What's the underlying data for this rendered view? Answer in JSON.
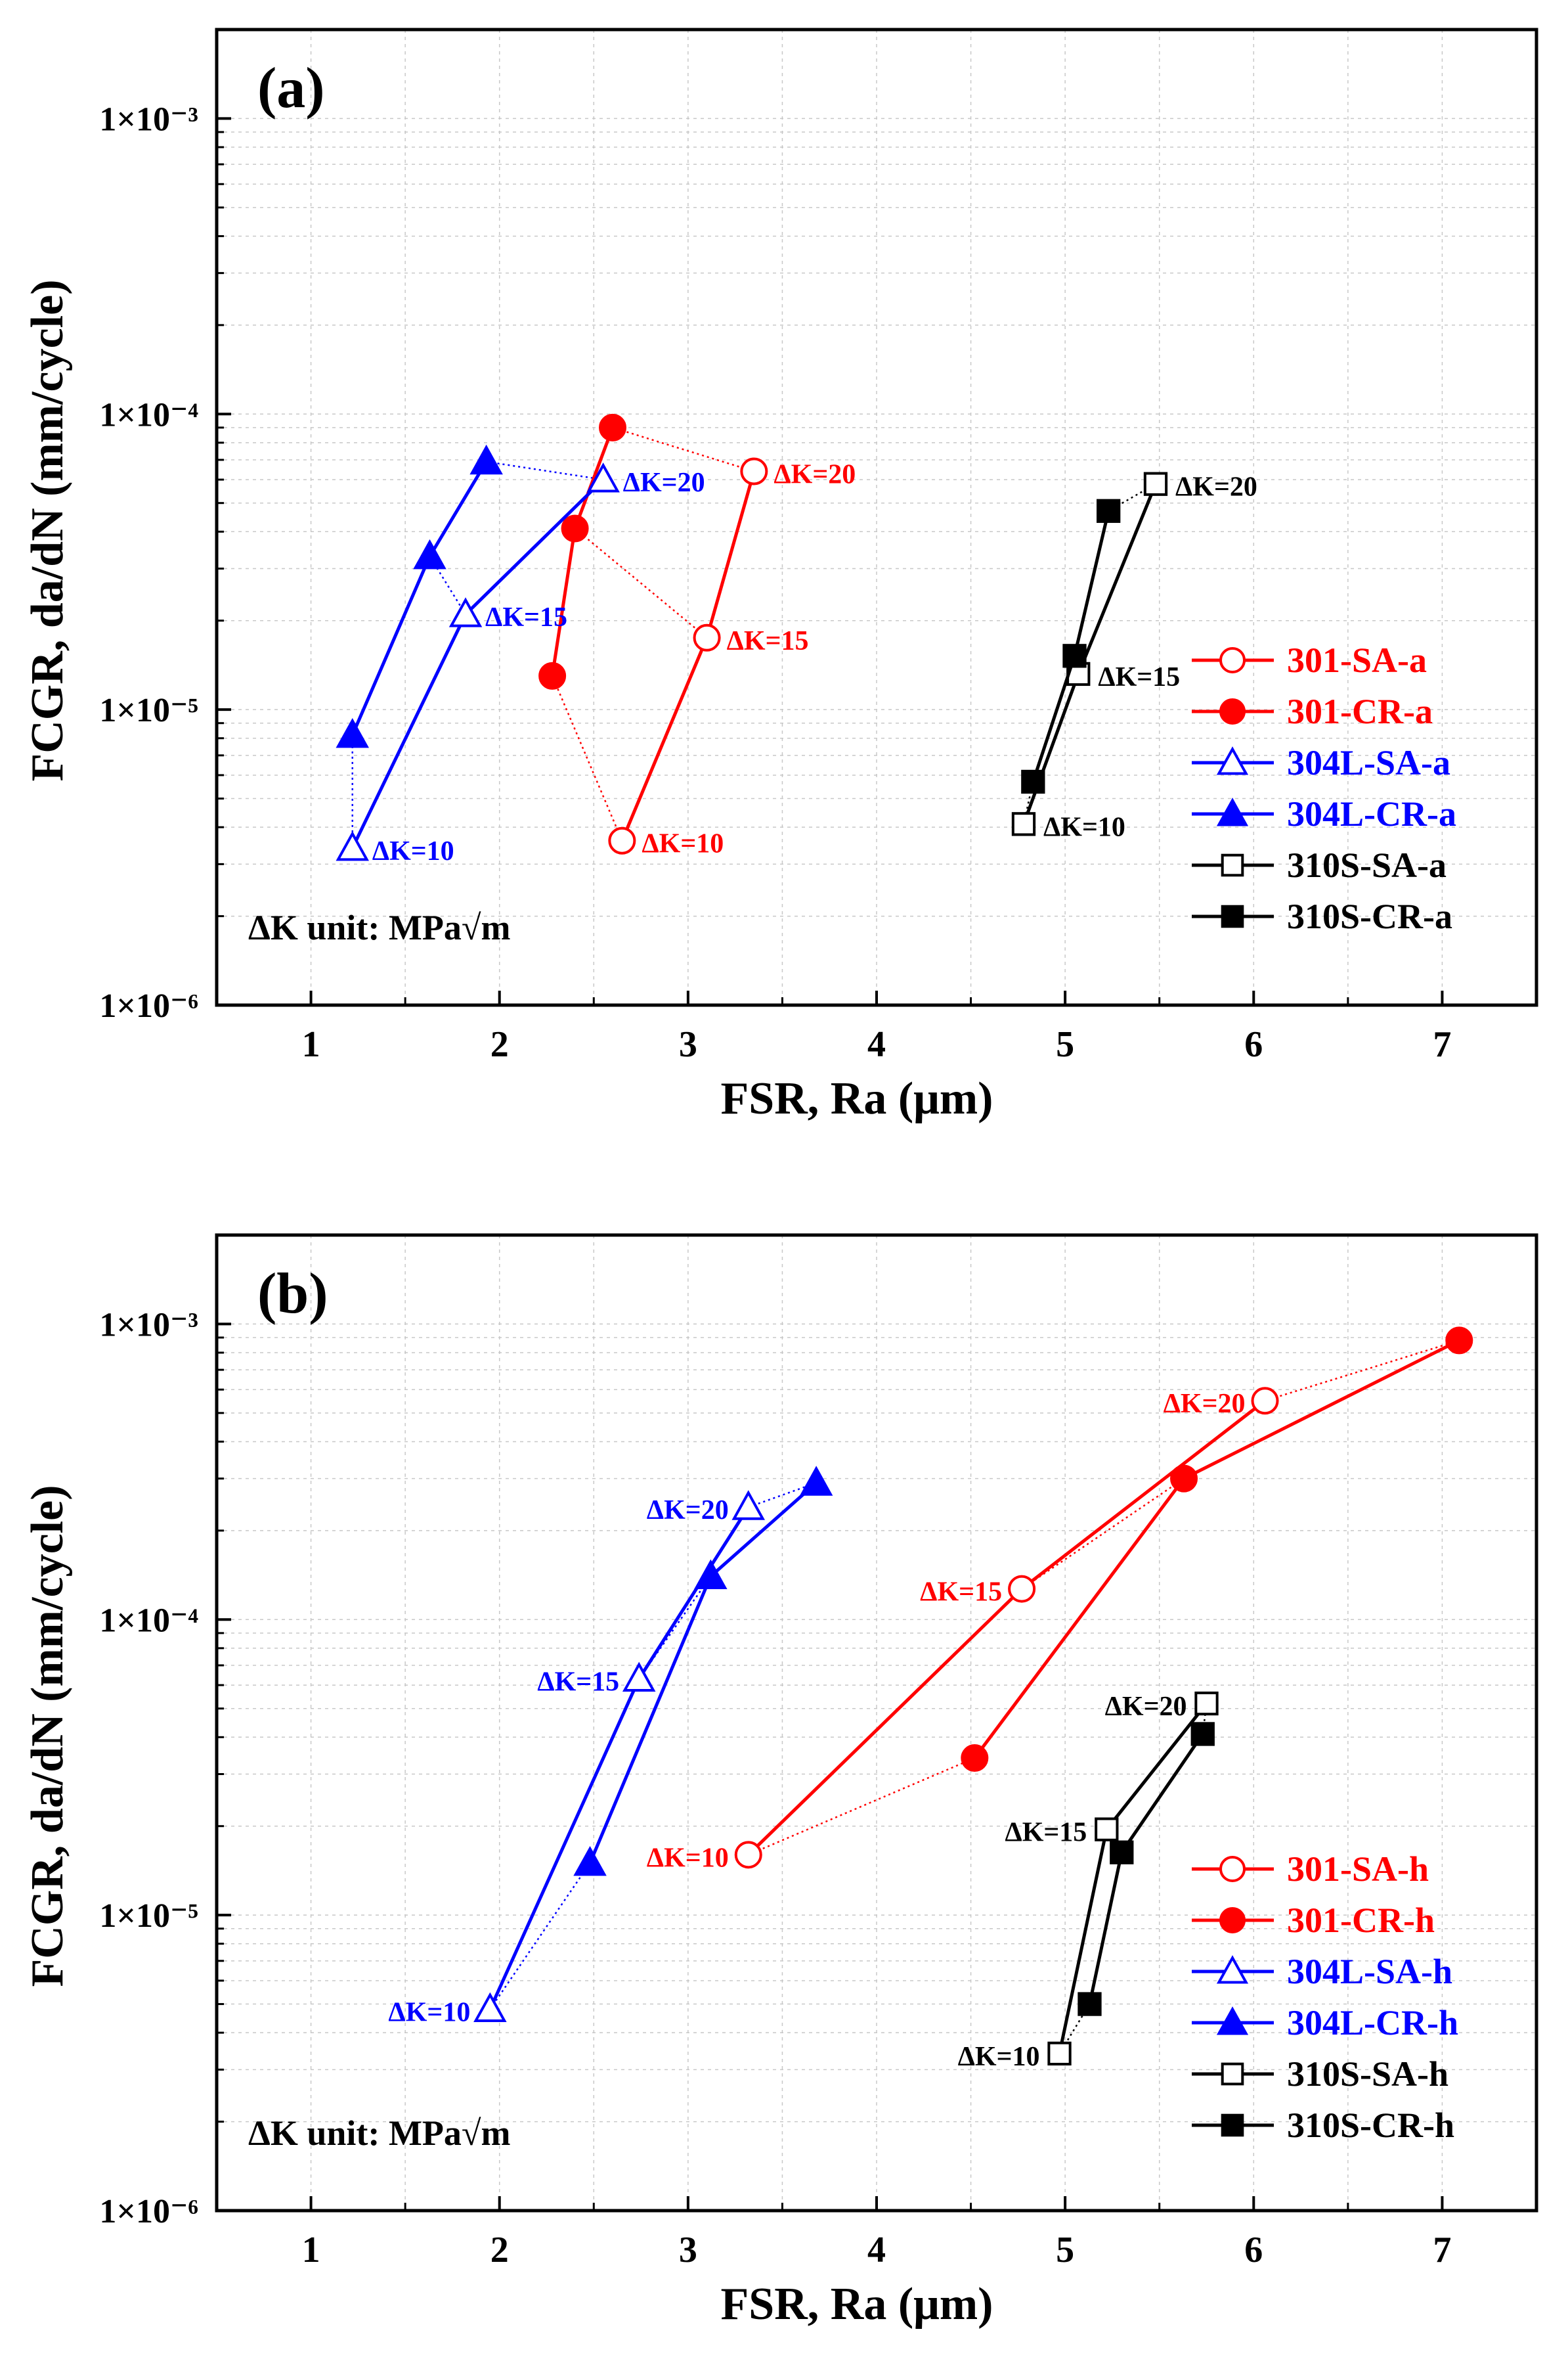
{
  "chart_data": [
    {
      "type": "line",
      "panel_label": "(a)",
      "xlabel": "FSR, Ra (μm)",
      "ylabel": "FCGR, da/dN (mm/cycle)",
      "xlim": [
        0.5,
        7.5
      ],
      "ylim": [
        1e-06,
        0.002
      ],
      "yscale": "log",
      "x_ticks": [
        "1",
        "2",
        "3",
        "4",
        "5",
        "6",
        "7"
      ],
      "y_ticks": [
        "1×10⁻⁶",
        "1×10⁻⁵",
        "1×10⁻⁴",
        "1×10⁻³"
      ],
      "grid": true,
      "legend_position": "right",
      "unit_note": "ΔK unit: MPa√m",
      "series": [
        {
          "name": "301-SA-a",
          "color": "#ff0000",
          "marker": "circle-open",
          "x": [
            2.65,
            3.1,
            3.35
          ],
          "y": [
            3.6e-06,
            1.75e-05,
            6.4e-05
          ]
        },
        {
          "name": "301-CR-a",
          "color": "#ff0000",
          "marker": "circle-filled",
          "x": [
            2.28,
            2.4,
            2.6
          ],
          "y": [
            1.3e-05,
            4.1e-05,
            9e-05
          ]
        },
        {
          "name": "304L-SA-a",
          "color": "#0000ff",
          "marker": "triangle-open",
          "x": [
            1.22,
            1.82,
            2.55
          ],
          "y": [
            3.4e-06,
            2.1e-05,
            6e-05
          ]
        },
        {
          "name": "304L-CR-a",
          "color": "#0000ff",
          "marker": "triangle-filled",
          "x": [
            1.22,
            1.63,
            1.93
          ],
          "y": [
            8.2e-06,
            3.3e-05,
            6.9e-05
          ]
        },
        {
          "name": "310S-SA-a",
          "color": "#000000",
          "marker": "square-open",
          "x": [
            4.78,
            5.07,
            5.48
          ],
          "y": [
            4.1e-06,
            1.32e-05,
            5.8e-05
          ]
        },
        {
          "name": "310S-CR-a",
          "color": "#000000",
          "marker": "square-filled",
          "x": [
            4.83,
            5.05,
            5.23
          ],
          "y": [
            5.7e-06,
            1.52e-05,
            4.7e-05
          ]
        }
      ],
      "annotations": [
        {
          "text": "ΔK=20",
          "x": 3.35,
          "y": 6.4e-05,
          "color": "#ff0000",
          "side": "right"
        },
        {
          "text": "ΔK=15",
          "x": 3.1,
          "y": 1.75e-05,
          "color": "#ff0000",
          "side": "right"
        },
        {
          "text": "ΔK=10",
          "x": 2.65,
          "y": 3.6e-06,
          "color": "#ff0000",
          "side": "right"
        },
        {
          "text": "ΔK=20",
          "x": 2.55,
          "y": 6e-05,
          "color": "#0000ff",
          "side": "right"
        },
        {
          "text": "ΔK=15",
          "x": 1.82,
          "y": 2.1e-05,
          "color": "#0000ff",
          "side": "right"
        },
        {
          "text": "ΔK=10",
          "x": 1.22,
          "y": 3.4e-06,
          "color": "#0000ff",
          "side": "right"
        },
        {
          "text": "ΔK=20",
          "x": 5.48,
          "y": 5.8e-05,
          "color": "#000000",
          "side": "right"
        },
        {
          "text": "ΔK=15",
          "x": 5.07,
          "y": 1.32e-05,
          "color": "#000000",
          "side": "right"
        },
        {
          "text": "ΔK=10",
          "x": 4.78,
          "y": 4.1e-06,
          "color": "#000000",
          "side": "right"
        }
      ]
    },
    {
      "type": "line",
      "panel_label": "(b)",
      "xlabel": "FSR, Ra (μm)",
      "ylabel": "FCGR, da/dN (mm/cycle)",
      "xlim": [
        0.5,
        7.5
      ],
      "ylim": [
        1e-06,
        0.002
      ],
      "yscale": "log",
      "x_ticks": [
        "1",
        "2",
        "3",
        "4",
        "5",
        "6",
        "7"
      ],
      "y_ticks": [
        "1×10⁻⁶",
        "1×10⁻⁵",
        "1×10⁻⁴",
        "1×10⁻³"
      ],
      "grid": true,
      "legend_position": "bottom-right",
      "unit_note": "ΔK unit: MPa√m",
      "series": [
        {
          "name": "301-SA-h",
          "color": "#ff0000",
          "marker": "circle-open",
          "x": [
            3.32,
            4.77,
            6.06
          ],
          "y": [
            1.6e-05,
            0.000127,
            0.00055
          ]
        },
        {
          "name": "301-CR-h",
          "color": "#ff0000",
          "marker": "circle-filled",
          "x": [
            4.52,
            5.63,
            7.09
          ],
          "y": [
            3.4e-05,
            0.0003,
            0.00088
          ]
        },
        {
          "name": "304L-SA-h",
          "color": "#0000ff",
          "marker": "triangle-open",
          "x": [
            1.95,
            2.74,
            3.32
          ],
          "y": [
            4.8e-06,
            6.3e-05,
            0.00024
          ]
        },
        {
          "name": "304L-CR-h",
          "color": "#0000ff",
          "marker": "triangle-filled",
          "x": [
            2.48,
            3.12,
            3.68
          ],
          "y": [
            1.5e-05,
            0.00014,
            0.00029
          ]
        },
        {
          "name": "310S-SA-h",
          "color": "#000000",
          "marker": "square-open",
          "x": [
            4.97,
            5.22,
            5.75
          ],
          "y": [
            3.4e-06,
            1.95e-05,
            5.2e-05
          ]
        },
        {
          "name": "310S-CR-h",
          "color": "#000000",
          "marker": "square-filled",
          "x": [
            5.13,
            5.3,
            5.73
          ],
          "y": [
            5e-06,
            1.63e-05,
            4.1e-05
          ]
        }
      ],
      "annotations": [
        {
          "text": "ΔK=20",
          "x": 6.06,
          "y": 0.00055,
          "color": "#ff0000",
          "side": "left"
        },
        {
          "text": "ΔK=15",
          "x": 4.77,
          "y": 0.000127,
          "color": "#ff0000",
          "side": "left"
        },
        {
          "text": "ΔK=10",
          "x": 3.32,
          "y": 1.6e-05,
          "color": "#ff0000",
          "side": "left"
        },
        {
          "text": "ΔK=20",
          "x": 3.32,
          "y": 0.00024,
          "color": "#0000ff",
          "side": "left"
        },
        {
          "text": "ΔK=15",
          "x": 2.74,
          "y": 6.3e-05,
          "color": "#0000ff",
          "side": "left"
        },
        {
          "text": "ΔK=10",
          "x": 1.95,
          "y": 4.8e-06,
          "color": "#0000ff",
          "side": "left"
        },
        {
          "text": "ΔK=20",
          "x": 5.75,
          "y": 5.2e-05,
          "color": "#000000",
          "side": "left"
        },
        {
          "text": "ΔK=15",
          "x": 5.22,
          "y": 1.95e-05,
          "color": "#000000",
          "side": "left"
        },
        {
          "text": "ΔK=10",
          "x": 4.97,
          "y": 3.4e-06,
          "color": "#000000",
          "side": "left"
        }
      ]
    }
  ]
}
